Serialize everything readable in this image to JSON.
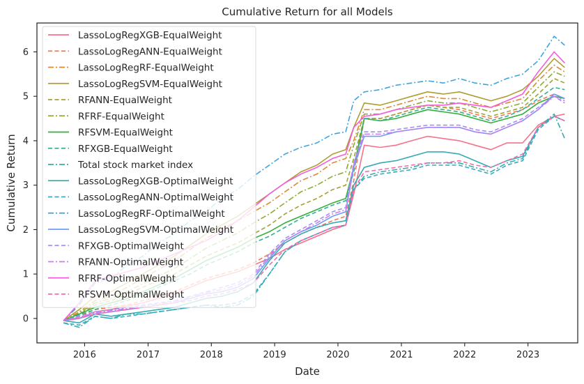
{
  "chart_data": {
    "type": "line",
    "title": "Cumulative Return for all Models",
    "xlabel": "Date",
    "ylabel": "Cumulative Return",
    "xlim": [
      "2015-04-01",
      "2023-10-15"
    ],
    "ylim": [
      -0.55,
      6.65
    ],
    "x_ticks": [
      "2016",
      "2017",
      "2018",
      "2019",
      "2020",
      "2021",
      "2022",
      "2023"
    ],
    "y_ticks": [
      "0",
      "1",
      "2",
      "3",
      "4",
      "5",
      "6"
    ],
    "grid": false,
    "legend_position": "upper left",
    "x": [
      "2015-09-01",
      "2015-12-01",
      "2016-03-01",
      "2016-06-01",
      "2016-09-01",
      "2016-12-01",
      "2017-03-01",
      "2017-06-01",
      "2017-09-01",
      "2017-12-01",
      "2018-03-01",
      "2018-06-01",
      "2018-09-01",
      "2018-12-01",
      "2019-03-01",
      "2019-06-01",
      "2019-09-01",
      "2019-12-01",
      "2020-02-15",
      "2020-04-01",
      "2020-06-01",
      "2020-09-01",
      "2020-12-01",
      "2021-03-01",
      "2021-06-01",
      "2021-09-01",
      "2021-12-01",
      "2022-03-01",
      "2022-06-01",
      "2022-09-01",
      "2022-12-01",
      "2023-03-01",
      "2023-06-01",
      "2023-08-01"
    ],
    "series": [
      {
        "name": "LassoLogRegXGB-EqualWeight",
        "color": "#f77189",
        "dash": "solid",
        "values": [
          -0.05,
          0.0,
          0.15,
          0.2,
          0.28,
          0.35,
          0.45,
          0.55,
          0.7,
          0.85,
          0.95,
          1.05,
          1.2,
          1.35,
          1.55,
          1.7,
          1.85,
          2.0,
          2.1,
          2.8,
          3.9,
          3.85,
          3.9,
          4.0,
          4.1,
          4.05,
          4.0,
          3.9,
          3.8,
          3.95,
          3.95,
          4.35,
          4.55,
          4.6
        ]
      },
      {
        "name": "LassoLogRegANN-EqualWeight",
        "color": "#f7754f",
        "dash": "dashed",
        "values": [
          -0.05,
          0.05,
          0.2,
          0.25,
          0.3,
          0.4,
          0.5,
          0.6,
          0.75,
          0.9,
          1.0,
          1.1,
          1.25,
          1.45,
          1.7,
          1.9,
          2.05,
          2.2,
          2.3,
          3.1,
          4.5,
          4.5,
          4.6,
          4.7,
          4.8,
          4.75,
          4.7,
          4.6,
          4.5,
          4.6,
          4.7,
          4.9,
          5.05,
          4.95
        ]
      },
      {
        "name": "LassoLogRegRF-EqualWeight",
        "color": "#dc8932",
        "dash": "dashdot",
        "values": [
          -0.05,
          0.15,
          0.4,
          0.5,
          0.7,
          0.9,
          1.1,
          1.3,
          1.55,
          1.8,
          2.0,
          2.2,
          2.4,
          2.6,
          2.85,
          3.1,
          3.25,
          3.5,
          3.6,
          4.0,
          4.7,
          4.7,
          4.8,
          4.9,
          5.0,
          4.95,
          4.95,
          4.85,
          4.75,
          4.85,
          4.95,
          5.35,
          5.7,
          5.55
        ]
      },
      {
        "name": "LassoLogRegSVM-EqualWeight",
        "color": "#ae9d31",
        "dash": "solid",
        "values": [
          -0.05,
          0.2,
          0.5,
          0.6,
          0.8,
          1.0,
          1.2,
          1.4,
          1.65,
          1.9,
          2.1,
          2.3,
          2.55,
          2.8,
          3.05,
          3.3,
          3.45,
          3.7,
          3.8,
          4.3,
          4.85,
          4.8,
          4.9,
          5.0,
          5.1,
          5.05,
          5.1,
          5.0,
          4.9,
          5.0,
          5.15,
          5.45,
          5.85,
          5.65
        ]
      },
      {
        "name": "RFANN-EqualWeight",
        "color": "#a3a133",
        "dash": "dashed",
        "values": [
          -0.05,
          0.1,
          0.3,
          0.4,
          0.55,
          0.7,
          0.85,
          1.0,
          1.2,
          1.4,
          1.55,
          1.7,
          1.9,
          2.1,
          2.35,
          2.55,
          2.7,
          2.9,
          3.0,
          3.6,
          4.5,
          4.5,
          4.6,
          4.7,
          4.8,
          4.75,
          4.75,
          4.65,
          4.55,
          4.65,
          4.75,
          5.05,
          5.4,
          5.3
        ]
      },
      {
        "name": "RFRF-EqualWeight",
        "color": "#8bab33",
        "dash": "dashdot",
        "values": [
          -0.05,
          0.12,
          0.35,
          0.45,
          0.6,
          0.78,
          0.95,
          1.12,
          1.35,
          1.58,
          1.75,
          1.92,
          2.15,
          2.35,
          2.6,
          2.85,
          3.0,
          3.2,
          3.3,
          3.9,
          4.6,
          4.6,
          4.7,
          4.8,
          4.9,
          4.85,
          4.85,
          4.75,
          4.65,
          4.75,
          4.85,
          5.2,
          5.55,
          5.45
        ]
      },
      {
        "name": "RFSVM-EqualWeight",
        "color": "#33b039",
        "dash": "solid",
        "values": [
          -0.05,
          0.1,
          0.25,
          0.35,
          0.45,
          0.6,
          0.75,
          0.9,
          1.1,
          1.3,
          1.45,
          1.6,
          1.8,
          1.95,
          2.15,
          2.3,
          2.45,
          2.6,
          2.7,
          3.4,
          4.5,
          4.45,
          4.5,
          4.6,
          4.7,
          4.65,
          4.6,
          4.5,
          4.4,
          4.5,
          4.6,
          4.85,
          5.0,
          4.95
        ]
      },
      {
        "name": "RFXGB-EqualWeight",
        "color": "#35ae93",
        "dash": "dashed",
        "values": [
          -0.05,
          0.08,
          0.2,
          0.3,
          0.4,
          0.55,
          0.7,
          0.85,
          1.0,
          1.2,
          1.35,
          1.5,
          1.7,
          1.85,
          2.05,
          2.25,
          2.4,
          2.55,
          2.65,
          3.3,
          4.5,
          4.45,
          4.55,
          4.65,
          4.75,
          4.7,
          4.65,
          4.55,
          4.45,
          4.55,
          4.7,
          4.95,
          5.2,
          5.15
        ]
      },
      {
        "name": "Total stock market index",
        "color": "#36ada4",
        "dash": "dashdot",
        "values": [
          -0.1,
          -0.2,
          0.05,
          0.0,
          0.1,
          0.1,
          0.15,
          0.2,
          0.25,
          0.3,
          0.25,
          0.3,
          0.5,
          1.0,
          1.5,
          1.75,
          1.9,
          2.05,
          2.1,
          2.9,
          3.2,
          3.3,
          3.35,
          3.4,
          3.5,
          3.5,
          3.5,
          3.4,
          3.3,
          3.5,
          3.6,
          4.3,
          4.6,
          4.05
        ]
      },
      {
        "name": "LassoLogRegXGB-OptimalWeight",
        "color": "#37abb4",
        "dash": "solid",
        "values": [
          -0.05,
          -0.1,
          0.1,
          0.05,
          0.1,
          0.15,
          0.2,
          0.25,
          0.35,
          0.45,
          0.5,
          0.6,
          0.8,
          1.3,
          1.7,
          1.9,
          2.05,
          2.15,
          2.2,
          3.0,
          3.4,
          3.5,
          3.55,
          3.65,
          3.75,
          3.75,
          3.7,
          3.55,
          3.4,
          3.55,
          3.65,
          4.3,
          4.55,
          4.45
        ]
      },
      {
        "name": "LassoLogRegANN-OptimalWeight",
        "color": "#38a9c5",
        "dash": "dashed",
        "values": [
          -0.1,
          -0.15,
          0.05,
          0.0,
          0.05,
          0.1,
          0.15,
          0.2,
          0.25,
          0.3,
          0.3,
          0.35,
          0.55,
          1.0,
          1.5,
          1.75,
          1.9,
          2.05,
          2.1,
          2.9,
          3.15,
          3.25,
          3.3,
          3.35,
          3.45,
          3.45,
          3.45,
          3.35,
          3.25,
          3.45,
          3.55,
          4.25,
          4.55,
          4.45
        ]
      },
      {
        "name": "LassoLogRegRF-OptimalWeight",
        "color": "#3aa5df",
        "dash": "dashdot",
        "values": [
          -0.05,
          0.3,
          0.8,
          0.9,
          1.2,
          1.4,
          1.7,
          1.9,
          2.2,
          2.4,
          2.7,
          2.9,
          3.2,
          3.45,
          3.7,
          3.85,
          3.95,
          4.15,
          4.2,
          4.9,
          5.1,
          5.15,
          5.25,
          5.3,
          5.35,
          5.3,
          5.4,
          5.3,
          5.25,
          5.4,
          5.5,
          5.8,
          6.35,
          6.15
        ]
      },
      {
        "name": "LassoLogRegSVM-OptimalWeight",
        "color": "#6e9bf4",
        "dash": "solid",
        "values": [
          -0.05,
          0.0,
          0.1,
          0.15,
          0.2,
          0.25,
          0.3,
          0.35,
          0.45,
          0.55,
          0.6,
          0.7,
          0.9,
          1.35,
          1.75,
          1.95,
          2.1,
          2.3,
          2.4,
          3.4,
          4.1,
          4.1,
          4.2,
          4.25,
          4.3,
          4.3,
          4.3,
          4.2,
          4.15,
          4.3,
          4.45,
          4.7,
          5.05,
          4.95
        ]
      },
      {
        "name": "RFXGB-OptimalWeight",
        "color": "#a48cf4",
        "dash": "dashed",
        "values": [
          -0.05,
          0.05,
          0.15,
          0.2,
          0.25,
          0.3,
          0.35,
          0.4,
          0.5,
          0.6,
          0.7,
          0.8,
          1.0,
          1.45,
          1.8,
          2.0,
          2.2,
          2.4,
          2.5,
          3.5,
          4.2,
          4.2,
          4.25,
          4.3,
          4.35,
          4.35,
          4.35,
          4.25,
          4.2,
          4.35,
          4.5,
          4.75,
          5.0,
          4.85
        ]
      },
      {
        "name": "RFANN-OptimalWeight",
        "color": "#cc7af4",
        "dash": "dashdot",
        "values": [
          -0.05,
          0.03,
          0.12,
          0.18,
          0.22,
          0.28,
          0.33,
          0.38,
          0.48,
          0.58,
          0.65,
          0.75,
          0.95,
          1.4,
          1.75,
          1.95,
          2.15,
          2.35,
          2.45,
          3.45,
          4.15,
          4.15,
          4.2,
          4.25,
          4.3,
          4.3,
          4.3,
          4.2,
          4.15,
          4.3,
          4.45,
          4.7,
          5.0,
          4.9
        ]
      },
      {
        "name": "RFRF-OptimalWeight",
        "color": "#f45cdc",
        "dash": "solid",
        "values": [
          -0.05,
          0.35,
          0.85,
          0.95,
          1.05,
          1.15,
          1.3,
          1.45,
          1.6,
          1.75,
          1.95,
          2.2,
          2.5,
          2.8,
          3.05,
          3.25,
          3.4,
          3.6,
          3.7,
          4.3,
          4.55,
          4.6,
          4.7,
          4.75,
          4.8,
          4.8,
          4.85,
          4.8,
          4.75,
          4.9,
          5.05,
          5.55,
          6.0,
          5.75
        ]
      },
      {
        "name": "RFSVM-OptimalWeight",
        "color": "#f66ab0",
        "dash": "dashed",
        "values": [
          -0.05,
          0.0,
          0.1,
          0.15,
          0.2,
          0.25,
          0.3,
          0.35,
          0.4,
          0.5,
          0.55,
          0.65,
          0.8,
          1.2,
          1.55,
          1.75,
          1.9,
          2.05,
          2.1,
          2.9,
          3.3,
          3.35,
          3.4,
          3.45,
          3.5,
          3.5,
          3.55,
          3.45,
          3.4,
          3.55,
          3.7,
          4.3,
          4.55,
          4.45
        ]
      }
    ]
  }
}
